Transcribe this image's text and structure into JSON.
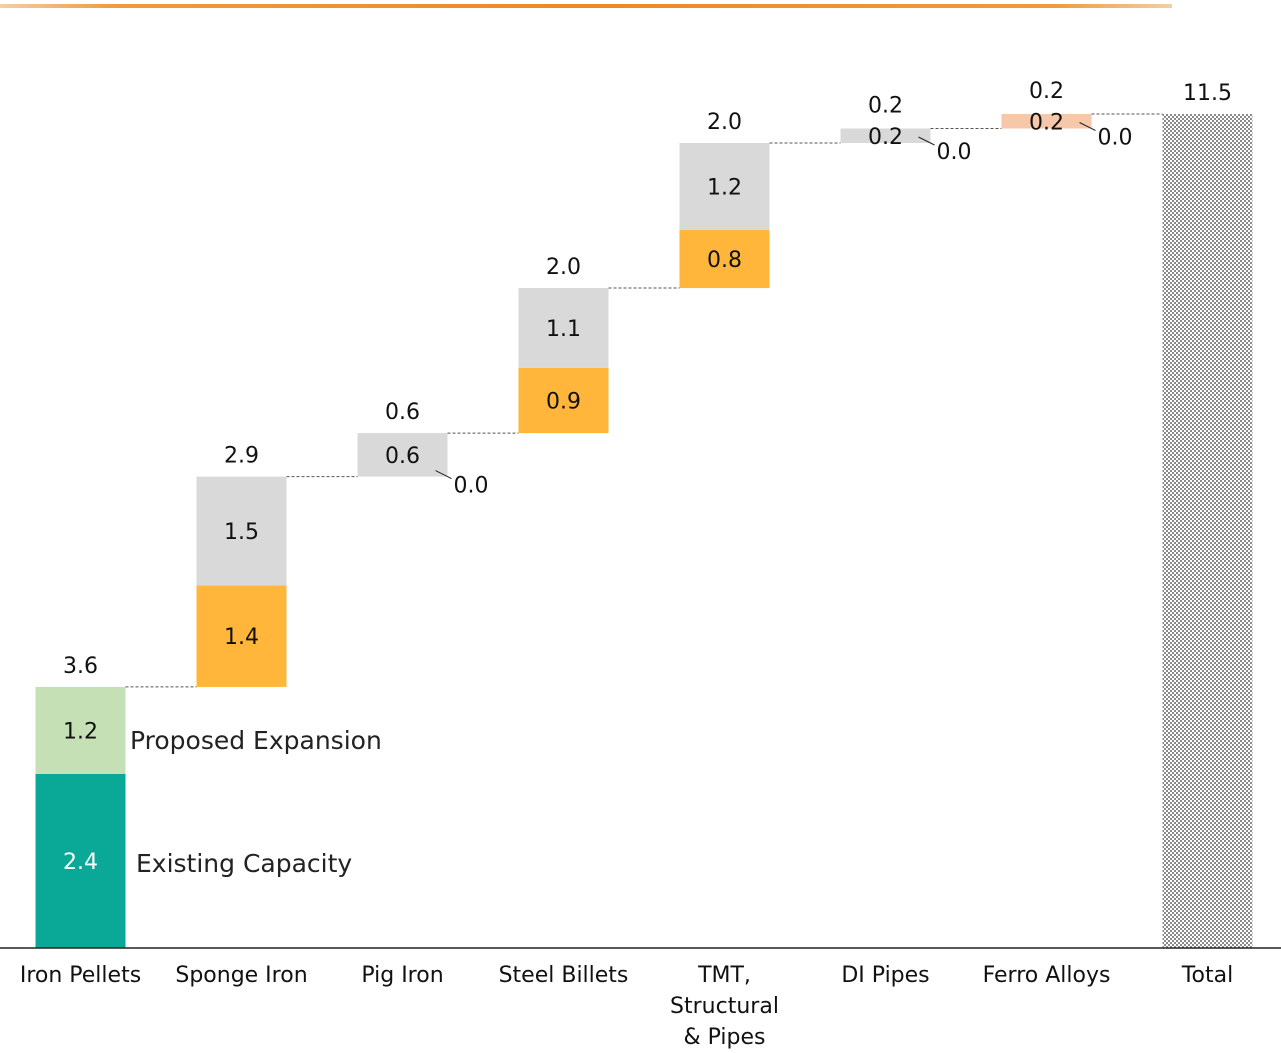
{
  "chart_data": {
    "type": "bar",
    "subtype": "stacked-waterfall",
    "categories": [
      "Iron Pellets",
      "Sponge Iron",
      "Pig Iron",
      "Steel Billets",
      "TMT, Structural & Pipes",
      "DI Pipes",
      "Ferro Alloys",
      "Total"
    ],
    "category_lines": [
      [
        "Iron Pellets"
      ],
      [
        "Sponge Iron"
      ],
      [
        "Pig Iron"
      ],
      [
        "Steel Billets"
      ],
      [
        "TMT,",
        "Structural",
        "& Pipes"
      ],
      [
        "DI Pipes"
      ],
      [
        "Ferro Alloys"
      ],
      [
        "Total"
      ]
    ],
    "series": [
      {
        "name": "Existing Capacity",
        "values": [
          2.4,
          1.4,
          0.0,
          0.9,
          0.8,
          0.0,
          0.2,
          null
        ],
        "colors": [
          "#0aa896",
          "#ffb63a",
          "#d9d9d9",
          "#ffb63a",
          "#ffb63a",
          "#d9d9d9",
          "#f6c7a8",
          null
        ],
        "labels": [
          "2.4",
          "1.4",
          "0.0",
          "0.9",
          "0.8",
          "0.0",
          "0.2",
          null
        ]
      },
      {
        "name": "Proposed Expansion",
        "values": [
          1.2,
          1.5,
          0.6,
          1.1,
          1.2,
          0.2,
          0.0,
          null
        ],
        "colors": [
          "#c5e0b4",
          "#d9d9d9",
          "#d9d9d9",
          "#d9d9d9",
          "#d9d9d9",
          "#d9d9d9",
          "#f6c7a8",
          null
        ],
        "labels": [
          "1.2",
          "1.5",
          "0.6",
          "1.1",
          "1.2",
          "0.2",
          "0.0",
          null
        ]
      }
    ],
    "totals": [
      "3.6",
      "2.9",
      "0.6",
      "2.0",
      "2.0",
      "0.2",
      "0.2",
      "11.5"
    ],
    "total_value": 11.5,
    "total_bar_color": "#8a8a8a",
    "annotations": [
      "Proposed Expansion",
      "Existing Capacity"
    ],
    "ylim": [
      0,
      11.5
    ],
    "grid": false,
    "legend": "none"
  },
  "colors": {
    "accent_bar": "#ec8a24",
    "axis": "#222222",
    "connector": "#555555"
  }
}
